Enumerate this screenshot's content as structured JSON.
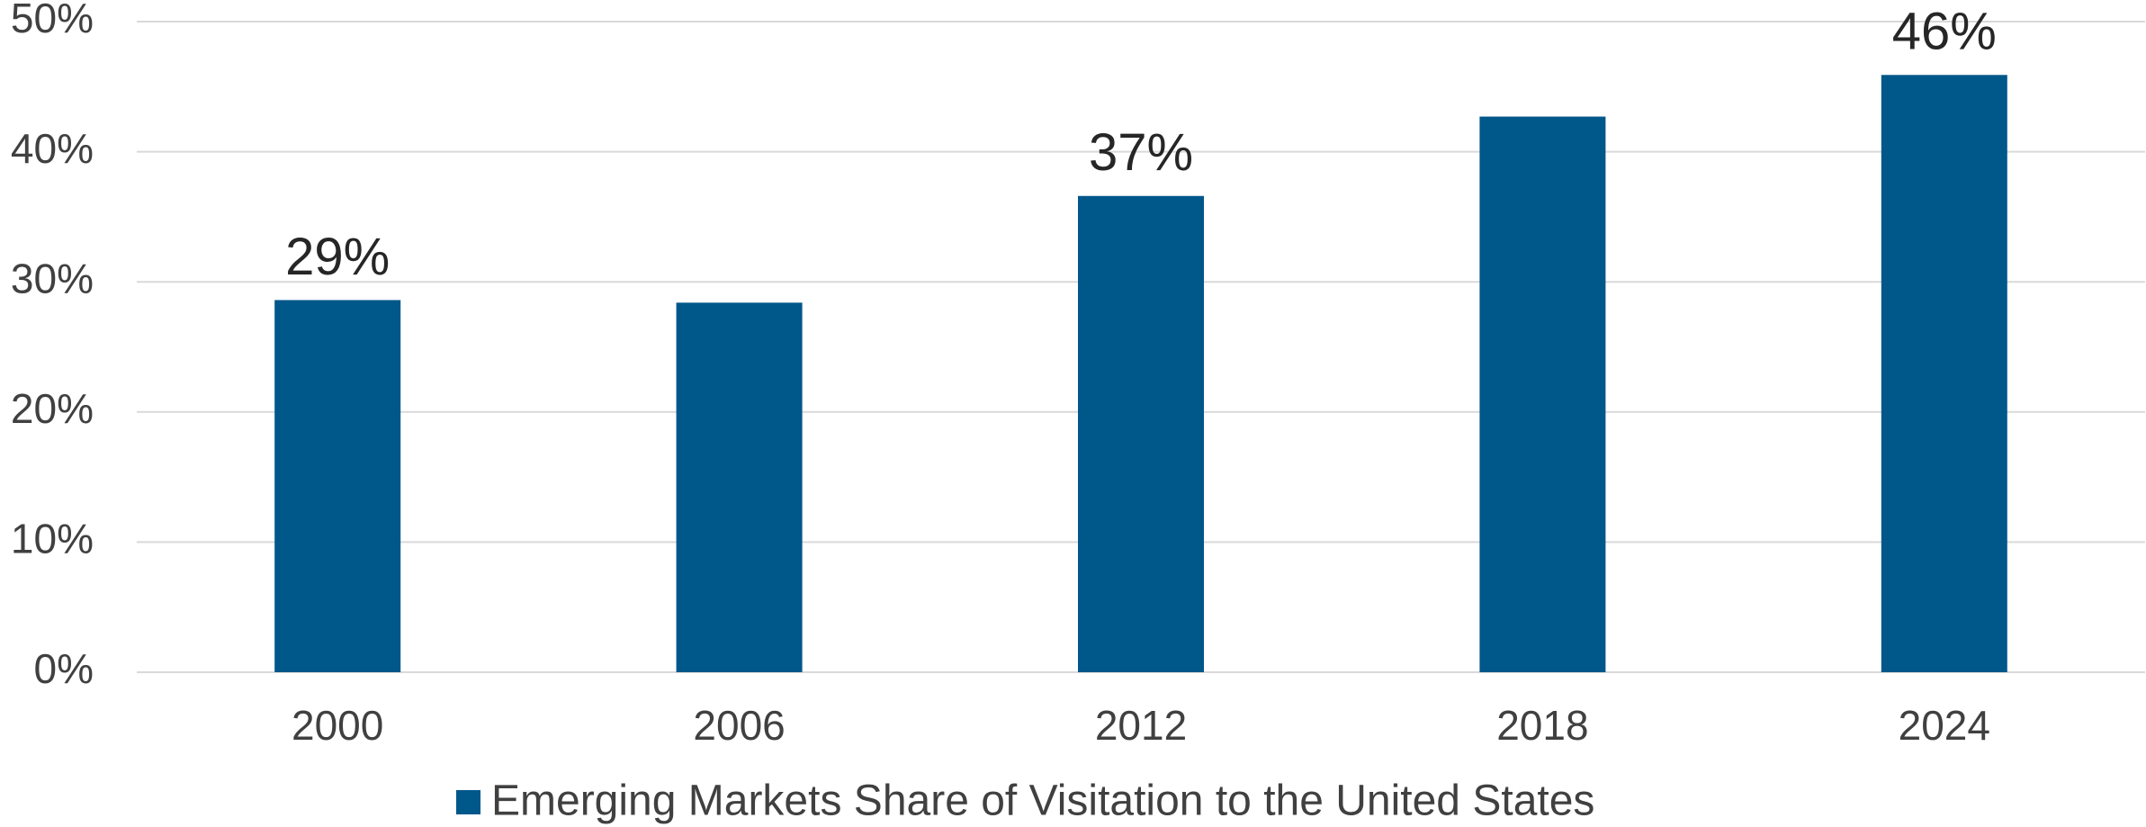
{
  "chart_data": {
    "type": "bar",
    "categories": [
      "2000",
      "2006",
      "2012",
      "2018",
      "2024"
    ],
    "series": [
      {
        "name": "Emerging Markets Share of Visitation to the United States",
        "color": "#00578a",
        "values": [
          28.6,
          28.4,
          36.6,
          42.7,
          45.9
        ],
        "value_labels": [
          "29%",
          null,
          "37%",
          null,
          "46%"
        ]
      }
    ],
    "ylim": [
      0,
      50
    ],
    "yticks": [
      {
        "value": 0,
        "label": "0%"
      },
      {
        "value": 10,
        "label": "10%"
      },
      {
        "value": 20,
        "label": "20%"
      },
      {
        "value": 30,
        "label": "30%"
      },
      {
        "value": 40,
        "label": "40%"
      },
      {
        "value": 50,
        "label": "50%"
      }
    ],
    "grid": true,
    "legend": "bottom"
  }
}
